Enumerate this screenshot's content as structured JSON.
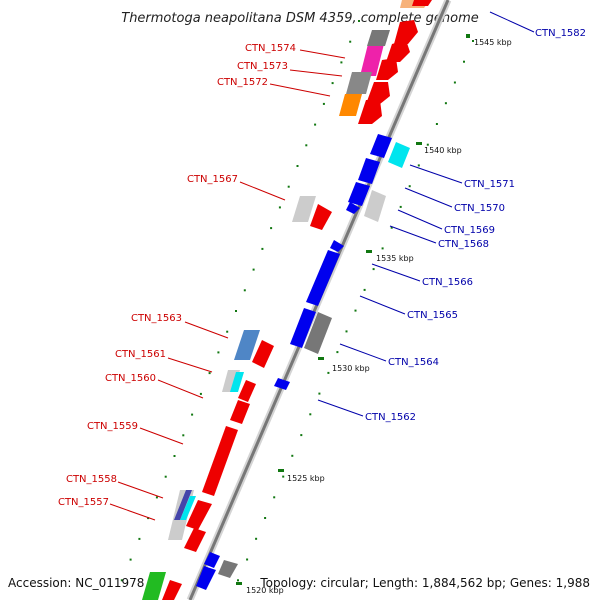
{
  "title": "Thermotoga neapolitana DSM 4359, complete genome",
  "footer": {
    "accession": "Accession: NC_011978",
    "topology": "Topology: circular; Length: 1,884,562 bp; Genes: 1,988"
  },
  "scale_labels": [
    "1545 kbp",
    "1540 kbp",
    "1535 kbp",
    "1530 kbp",
    "1525 kbp",
    "1520 kbp"
  ],
  "left_labels": [
    "CTN_1574",
    "CTN_1573",
    "CTN_1572",
    "CTN_1567",
    "CTN_1563",
    "CTN_1561",
    "CTN_1560",
    "CTN_1559",
    "CTN_1558",
    "CTN_1557"
  ],
  "right_labels": [
    "CTN_1582",
    "CTN_1571",
    "CTN_1570",
    "CTN_1569",
    "CTN_1568",
    "CTN_1566",
    "CTN_1565",
    "CTN_1564",
    "CTN_1562"
  ],
  "colors": {
    "forward_gene": "#ee0000",
    "reverse_gene": "#0000ee",
    "magenta": "#ee22aa",
    "orange": "#ff8800",
    "gray": "#777777",
    "light_gray": "#cccccc",
    "cyan": "#00e5ee",
    "steel_blue": "#4f86c6",
    "green": "#22bb22",
    "backbone": "#8a8a8a",
    "left_label": "#cc0000",
    "right_label": "#0000aa"
  }
}
